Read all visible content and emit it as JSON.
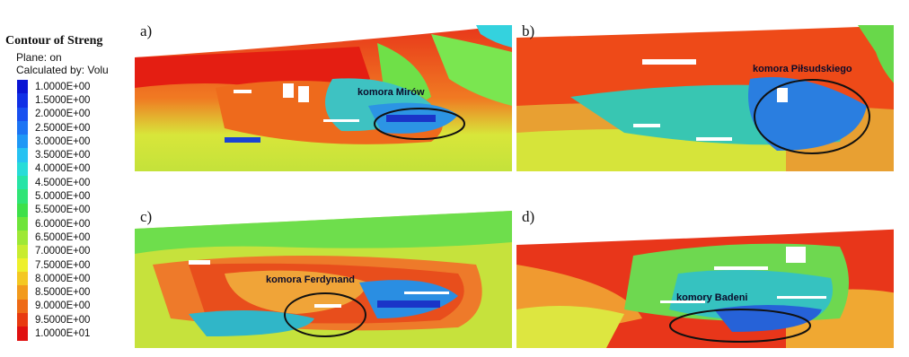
{
  "legend": {
    "title": "Contour of Streng",
    "plane": "Plane: on",
    "calculated": "Calculated by: Volu",
    "values": [
      "1.0000E+00",
      "1.5000E+00",
      "2.0000E+00",
      "2.5000E+00",
      "3.0000E+00",
      "3.5000E+00",
      "4.0000E+00",
      "4.5000E+00",
      "5.0000E+00",
      "5.5000E+00",
      "6.0000E+00",
      "6.5000E+00",
      "7.0000E+00",
      "7.5000E+00",
      "8.0000E+00",
      "8.5000E+00",
      "9.0000E+00",
      "9.5000E+00",
      "1.0000E+01"
    ],
    "colors": [
      "#0a14d4",
      "#1030e6",
      "#1850f0",
      "#1c74f4",
      "#1f98f6",
      "#26c2f2",
      "#27dcd8",
      "#26e4a6",
      "#30e476",
      "#3ee04a",
      "#6ee43a",
      "#9ee836",
      "#c8ec30",
      "#eef02c",
      "#f4c822",
      "#f29a1c",
      "#ee6a16",
      "#e83a10",
      "#e01010"
    ]
  },
  "panels": [
    {
      "letter": "a)",
      "label": "komora Mirów"
    },
    {
      "letter": "b)",
      "label": "komora Piłsudskiego"
    },
    {
      "letter": "c)",
      "label": "komora Ferdynand"
    },
    {
      "letter": "d)",
      "label": "komory Badeni"
    }
  ]
}
